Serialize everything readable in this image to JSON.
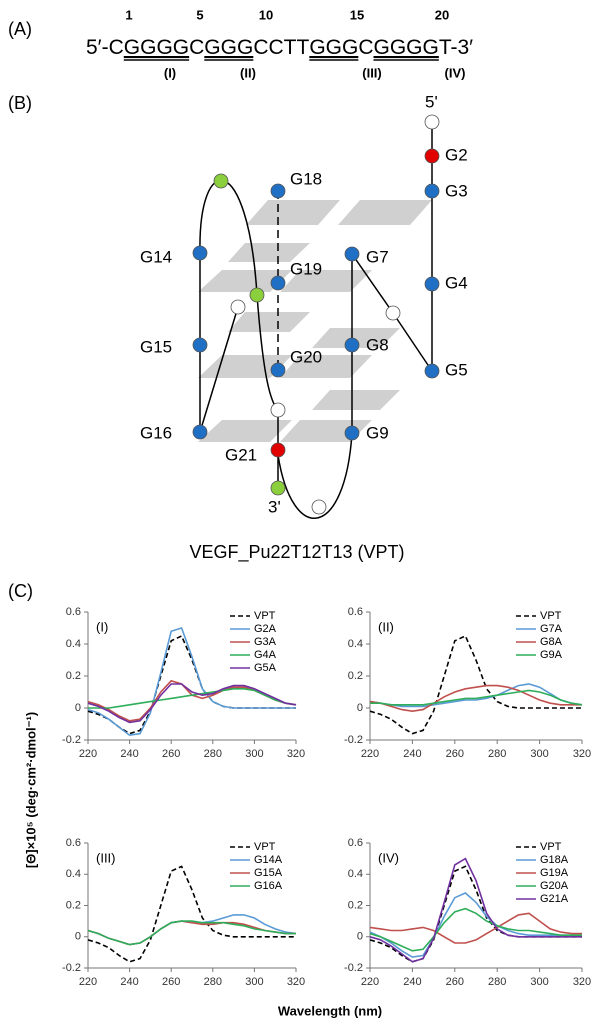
{
  "panel_a": {
    "label": "(A)",
    "positions": [
      1,
      5,
      10,
      15,
      20
    ],
    "sequence": [
      {
        "text": "5′-C",
        "underline": false
      },
      {
        "text": "GGGG",
        "underline": true
      },
      {
        "text": "C",
        "underline": false
      },
      {
        "text": "GGG",
        "underline": true
      },
      {
        "text": "CCTT",
        "underline": false
      },
      {
        "text": "GGG",
        "underline": true
      },
      {
        "text": "C",
        "underline": false
      },
      {
        "text": "GGGG",
        "underline": true
      },
      {
        "text": "T-3′",
        "underline": false
      }
    ],
    "tracts": [
      "(I)",
      "(II)",
      "(III)",
      "(IV)"
    ]
  },
  "panel_b": {
    "label": "(B)",
    "title": "VEGF_Pu22T12T13 (VPT)",
    "labels": [
      "5'",
      "G2",
      "G3",
      "G4",
      "G5",
      "G7",
      "G8",
      "G9",
      "G14",
      "G15",
      "G16",
      "G18",
      "G19",
      "G20",
      "G21",
      "3'"
    ]
  },
  "panel_c": {
    "label": "(C)",
    "y_label": "[Θ]×10⁵ (deg·cm²·dmol⁻¹)",
    "x_label": "Wavelength (nm)"
  },
  "chart_data": [
    {
      "type": "line",
      "label": "(I)",
      "legend": "upper right",
      "x": [
        220,
        225,
        230,
        235,
        240,
        245,
        250,
        255,
        260,
        265,
        270,
        275,
        280,
        285,
        290,
        295,
        300,
        305,
        310,
        315,
        320
      ],
      "xlim": [
        220,
        320
      ],
      "xticks": [
        220,
        240,
        260,
        280,
        300,
        320
      ],
      "ylim": [
        -0.2,
        0.6
      ],
      "yticks": [
        -0.2,
        0,
        0.2,
        0.4,
        0.6
      ],
      "series": [
        {
          "name": "VPT",
          "color": "#000000",
          "dashed": true,
          "values": [
            -0.02,
            -0.04,
            -0.07,
            -0.12,
            -0.16,
            -0.14,
            -0.02,
            0.2,
            0.42,
            0.45,
            0.3,
            0.12,
            0.04,
            0.01,
            0,
            0,
            0,
            0,
            0,
            0,
            0
          ]
        },
        {
          "name": "G2A",
          "color": "#5b9bd5",
          "dashed": false,
          "values": [
            -0.01,
            -0.03,
            -0.07,
            -0.12,
            -0.17,
            -0.16,
            -0.03,
            0.22,
            0.48,
            0.5,
            0.32,
            0.12,
            0.04,
            0.01,
            0,
            0,
            0,
            0,
            0,
            0,
            0
          ]
        },
        {
          "name": "G3A",
          "color": "#c0504d",
          "dashed": false,
          "values": [
            0.04,
            0.02,
            -0.01,
            -0.05,
            -0.08,
            -0.07,
            0,
            0.1,
            0.17,
            0.15,
            0.08,
            0.06,
            0.08,
            0.11,
            0.13,
            0.13,
            0.11,
            0.08,
            0.05,
            0.03,
            0.02
          ]
        },
        {
          "name": "G4A",
          "color": "#2eae5a",
          "dashed": false,
          "values": [
            0,
            0,
            0,
            0.01,
            0.02,
            0.03,
            0.04,
            0.05,
            0.06,
            0.07,
            0.08,
            0.09,
            0.1,
            0.11,
            0.12,
            0.12,
            0.11,
            0.08,
            0.05,
            0.03,
            0.02
          ]
        },
        {
          "name": "G5A",
          "color": "#7030a0",
          "dashed": false,
          "values": [
            0.03,
            0.01,
            -0.02,
            -0.06,
            -0.09,
            -0.08,
            -0.01,
            0.08,
            0.15,
            0.15,
            0.1,
            0.08,
            0.09,
            0.12,
            0.14,
            0.14,
            0.12,
            0.09,
            0.06,
            0.03,
            0.02
          ]
        }
      ]
    },
    {
      "type": "line",
      "label": "(II)",
      "legend": "upper right",
      "x": [
        220,
        225,
        230,
        235,
        240,
        245,
        250,
        255,
        260,
        265,
        270,
        275,
        280,
        285,
        290,
        295,
        300,
        305,
        310,
        315,
        320
      ],
      "xlim": [
        220,
        320
      ],
      "xticks": [
        220,
        240,
        260,
        280,
        300,
        320
      ],
      "ylim": [
        -0.2,
        0.6
      ],
      "yticks": [
        -0.2,
        0,
        0.2,
        0.4,
        0.6
      ],
      "series": [
        {
          "name": "VPT",
          "color": "#000000",
          "dashed": true,
          "values": [
            -0.02,
            -0.04,
            -0.07,
            -0.12,
            -0.16,
            -0.14,
            -0.02,
            0.2,
            0.42,
            0.45,
            0.3,
            0.12,
            0.04,
            0.01,
            0,
            0,
            0,
            0,
            0,
            0,
            0
          ]
        },
        {
          "name": "G7A",
          "color": "#5b9bd5",
          "dashed": false,
          "values": [
            0.04,
            0.03,
            0.02,
            0.01,
            0.01,
            0.01,
            0.02,
            0.03,
            0.04,
            0.05,
            0.05,
            0.06,
            0.08,
            0.11,
            0.14,
            0.15,
            0.13,
            0.09,
            0.05,
            0.03,
            0.02
          ]
        },
        {
          "name": "G8A",
          "color": "#c0504d",
          "dashed": false,
          "values": [
            0.04,
            0.03,
            0.01,
            -0.01,
            -0.02,
            -0.01,
            0.03,
            0.07,
            0.1,
            0.12,
            0.13,
            0.14,
            0.14,
            0.13,
            0.11,
            0.08,
            0.05,
            0.03,
            0.02,
            0.02,
            0.02
          ]
        },
        {
          "name": "G9A",
          "color": "#2eae5a",
          "dashed": false,
          "values": [
            0.03,
            0.03,
            0.02,
            0.02,
            0.02,
            0.02,
            0.03,
            0.04,
            0.05,
            0.06,
            0.06,
            0.07,
            0.08,
            0.09,
            0.1,
            0.11,
            0.1,
            0.08,
            0.05,
            0.03,
            0.02
          ]
        }
      ]
    },
    {
      "type": "line",
      "label": "(III)",
      "legend": "upper right",
      "x": [
        220,
        225,
        230,
        235,
        240,
        245,
        250,
        255,
        260,
        265,
        270,
        275,
        280,
        285,
        290,
        295,
        300,
        305,
        310,
        315,
        320
      ],
      "xlim": [
        220,
        320
      ],
      "xticks": [
        220,
        240,
        260,
        280,
        300,
        320
      ],
      "ylim": [
        -0.2,
        0.6
      ],
      "yticks": [
        -0.2,
        0,
        0.2,
        0.4,
        0.6
      ],
      "series": [
        {
          "name": "VPT",
          "color": "#000000",
          "dashed": true,
          "values": [
            -0.02,
            -0.04,
            -0.07,
            -0.12,
            -0.16,
            -0.14,
            -0.02,
            0.2,
            0.42,
            0.45,
            0.3,
            0.12,
            0.04,
            0.01,
            0,
            0,
            0,
            0,
            0,
            0,
            0
          ]
        },
        {
          "name": "G14A",
          "color": "#5b9bd5",
          "dashed": false,
          "values": [
            0.04,
            0.02,
            -0.01,
            -0.03,
            -0.05,
            -0.04,
            0,
            0.05,
            0.09,
            0.1,
            0.09,
            0.09,
            0.1,
            0.12,
            0.14,
            0.14,
            0.12,
            0.08,
            0.05,
            0.03,
            0.02
          ]
        },
        {
          "name": "G15A",
          "color": "#c0504d",
          "dashed": false,
          "values": [
            0.04,
            0.02,
            -0.01,
            -0.03,
            -0.05,
            -0.04,
            0,
            0.05,
            0.09,
            0.1,
            0.09,
            0.08,
            0.08,
            0.09,
            0.09,
            0.08,
            0.06,
            0.04,
            0.03,
            0.02,
            0.02
          ]
        },
        {
          "name": "G16A",
          "color": "#2eae5a",
          "dashed": false,
          "values": [
            0.04,
            0.02,
            -0.01,
            -0.03,
            -0.05,
            -0.04,
            0,
            0.05,
            0.09,
            0.1,
            0.1,
            0.09,
            0.09,
            0.09,
            0.08,
            0.07,
            0.05,
            0.04,
            0.03,
            0.02,
            0.02
          ]
        }
      ]
    },
    {
      "type": "line",
      "label": "(IV)",
      "legend": "upper right",
      "x": [
        220,
        225,
        230,
        235,
        240,
        245,
        250,
        255,
        260,
        265,
        270,
        275,
        280,
        285,
        290,
        295,
        300,
        305,
        310,
        315,
        320
      ],
      "xlim": [
        220,
        320
      ],
      "xticks": [
        220,
        240,
        260,
        280,
        300,
        320
      ],
      "ylim": [
        -0.2,
        0.6
      ],
      "yticks": [
        -0.2,
        0,
        0.2,
        0.4,
        0.6
      ],
      "series": [
        {
          "name": "VPT",
          "color": "#000000",
          "dashed": true,
          "values": [
            -0.02,
            -0.04,
            -0.07,
            -0.12,
            -0.16,
            -0.14,
            -0.02,
            0.2,
            0.42,
            0.45,
            0.3,
            0.12,
            0.04,
            0.01,
            0,
            0,
            0,
            0,
            0,
            0,
            0
          ]
        },
        {
          "name": "G18A",
          "color": "#5b9bd5",
          "dashed": false,
          "values": [
            0.03,
            0,
            -0.04,
            -0.09,
            -0.13,
            -0.12,
            -0.01,
            0.13,
            0.25,
            0.28,
            0.22,
            0.13,
            0.07,
            0.04,
            0.02,
            0.01,
            0.01,
            0.01,
            0.01,
            0.01,
            0.01
          ]
        },
        {
          "name": "G19A",
          "color": "#c0504d",
          "dashed": false,
          "values": [
            0.06,
            0.05,
            0.04,
            0.04,
            0.05,
            0.06,
            0.04,
            0,
            -0.04,
            -0.04,
            -0.02,
            0.02,
            0.06,
            0.1,
            0.14,
            0.15,
            0.1,
            0.05,
            0.03,
            0.02,
            0.02
          ]
        },
        {
          "name": "G20A",
          "color": "#2eae5a",
          "dashed": false,
          "values": [
            0.02,
            0,
            -0.03,
            -0.06,
            -0.09,
            -0.08,
            0,
            0.09,
            0.16,
            0.18,
            0.15,
            0.1,
            0.07,
            0.05,
            0.04,
            0.04,
            0.03,
            0.02,
            0.01,
            0.01,
            0.01
          ]
        },
        {
          "name": "G21A",
          "color": "#7030a0",
          "dashed": false,
          "values": [
            0,
            -0.02,
            -0.06,
            -0.11,
            -0.16,
            -0.14,
            -0.01,
            0.22,
            0.46,
            0.5,
            0.36,
            0.15,
            0.05,
            0.01,
            0,
            0,
            0,
            0,
            0,
            0,
            0
          ]
        }
      ]
    }
  ]
}
